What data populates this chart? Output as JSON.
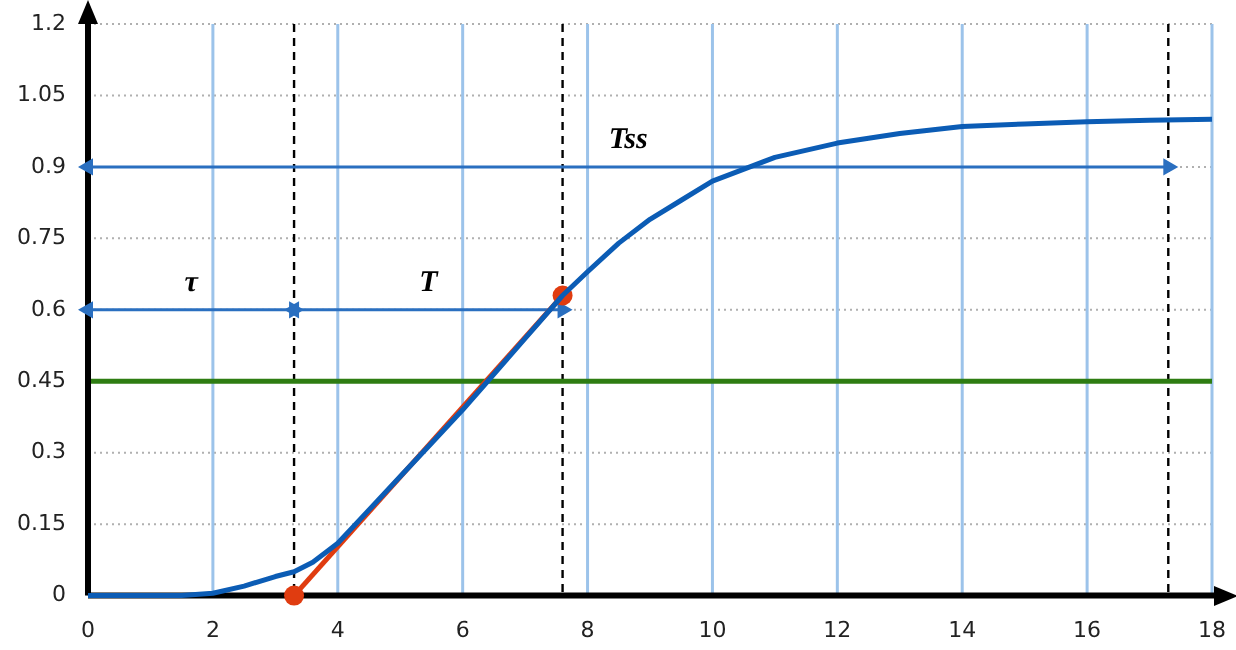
{
  "chart_data": {
    "type": "line",
    "x": [
      0,
      1,
      1.5,
      2,
      2.5,
      3,
      3.3,
      3.6,
      4,
      4.5,
      5,
      5.5,
      6,
      6.4,
      7,
      7.6,
      8,
      8.5,
      9,
      9.5,
      10,
      10.6,
      11,
      12,
      13,
      14,
      15,
      16,
      17,
      18
    ],
    "series": [
      {
        "color": "#0b5cb5",
        "marker": "none",
        "values": [
          0,
          0,
          0,
          0.005,
          0.02,
          0.04,
          0.05,
          0.07,
          0.11,
          0.18,
          0.25,
          0.32,
          0.39,
          0.45,
          0.54,
          0.63,
          0.68,
          0.74,
          0.79,
          0.83,
          0.87,
          0.9,
          0.92,
          0.95,
          0.97,
          0.985,
          0.99,
          0.995,
          0.998,
          1.0
        ]
      },
      {
        "color": "#e03c10",
        "marker": "circle",
        "x": [
          3.3,
          7.6
        ],
        "values": [
          0,
          0.63
        ]
      },
      {
        "name": "τ",
        "color": "#2a6fc0",
        "marker": "triangle",
        "x": [
          0,
          3.3
        ],
        "values": [
          0.6,
          0.6
        ]
      },
      {
        "name": "T",
        "color": "#2a6fc0",
        "marker": "triangle",
        "x": [
          3.3,
          7.6
        ],
        "values": [
          0.6,
          0.6
        ]
      },
      {
        "name": "Tss",
        "color": "#2a6fc0",
        "marker": "triangle",
        "x": [
          0,
          17.3
        ],
        "values": [
          0.9,
          0.9
        ]
      }
    ],
    "xlim": [
      0,
      18
    ],
    "xticks": [
      0,
      2,
      4,
      6,
      8,
      10,
      12,
      14,
      16,
      18
    ],
    "ylim": [
      0,
      1.2
    ],
    "yticks": [
      0,
      0.15,
      0.3,
      0.45,
      0.6,
      0.75,
      0.9,
      1.05,
      1.2
    ],
    "grid": true,
    "line_style": "solid",
    "ref_lines": [
      {
        "axis": "x",
        "value": 3.3,
        "color": "#000000",
        "line_style": "dashed"
      },
      {
        "axis": "x",
        "value": 7.6,
        "color": "#000000",
        "line_style": "dashed"
      },
      {
        "axis": "x",
        "value": 17.3,
        "color": "#000000",
        "line_style": "dashed"
      },
      {
        "axis": "y",
        "value": 0.45,
        "color": "#2e7d12",
        "line_style": "solid"
      }
    ],
    "legend": false
  }
}
